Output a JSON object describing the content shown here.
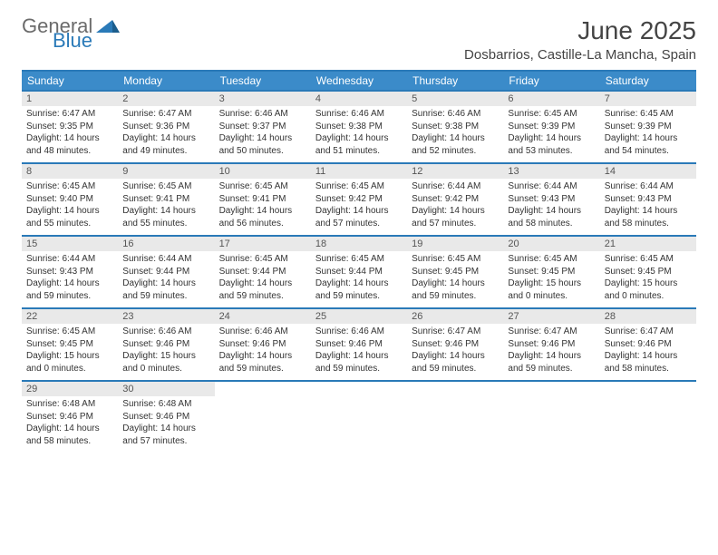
{
  "logo": {
    "line1": "General",
    "line2": "Blue"
  },
  "title": "June 2025",
  "location": "Dosbarrios, Castille-La Mancha, Spain",
  "columns": [
    "Sunday",
    "Monday",
    "Tuesday",
    "Wednesday",
    "Thursday",
    "Friday",
    "Saturday"
  ],
  "header_bg": "#3b8bc9",
  "header_border": "#2a7ab8",
  "daynum_bg": "#e9e9e9",
  "text_color": "#333333",
  "title_fontsize": 28,
  "location_fontsize": 15,
  "dayname_fontsize": 12,
  "daynum_fontsize": 11,
  "info_fontsize": 10,
  "weeks": [
    [
      {
        "n": "1",
        "sr": "6:47 AM",
        "ss": "9:35 PM",
        "dl": "14 hours and 48 minutes."
      },
      {
        "n": "2",
        "sr": "6:47 AM",
        "ss": "9:36 PM",
        "dl": "14 hours and 49 minutes."
      },
      {
        "n": "3",
        "sr": "6:46 AM",
        "ss": "9:37 PM",
        "dl": "14 hours and 50 minutes."
      },
      {
        "n": "4",
        "sr": "6:46 AM",
        "ss": "9:38 PM",
        "dl": "14 hours and 51 minutes."
      },
      {
        "n": "5",
        "sr": "6:46 AM",
        "ss": "9:38 PM",
        "dl": "14 hours and 52 minutes."
      },
      {
        "n": "6",
        "sr": "6:45 AM",
        "ss": "9:39 PM",
        "dl": "14 hours and 53 minutes."
      },
      {
        "n": "7",
        "sr": "6:45 AM",
        "ss": "9:39 PM",
        "dl": "14 hours and 54 minutes."
      }
    ],
    [
      {
        "n": "8",
        "sr": "6:45 AM",
        "ss": "9:40 PM",
        "dl": "14 hours and 55 minutes."
      },
      {
        "n": "9",
        "sr": "6:45 AM",
        "ss": "9:41 PM",
        "dl": "14 hours and 55 minutes."
      },
      {
        "n": "10",
        "sr": "6:45 AM",
        "ss": "9:41 PM",
        "dl": "14 hours and 56 minutes."
      },
      {
        "n": "11",
        "sr": "6:45 AM",
        "ss": "9:42 PM",
        "dl": "14 hours and 57 minutes."
      },
      {
        "n": "12",
        "sr": "6:44 AM",
        "ss": "9:42 PM",
        "dl": "14 hours and 57 minutes."
      },
      {
        "n": "13",
        "sr": "6:44 AM",
        "ss": "9:43 PM",
        "dl": "14 hours and 58 minutes."
      },
      {
        "n": "14",
        "sr": "6:44 AM",
        "ss": "9:43 PM",
        "dl": "14 hours and 58 minutes."
      }
    ],
    [
      {
        "n": "15",
        "sr": "6:44 AM",
        "ss": "9:43 PM",
        "dl": "14 hours and 59 minutes."
      },
      {
        "n": "16",
        "sr": "6:44 AM",
        "ss": "9:44 PM",
        "dl": "14 hours and 59 minutes."
      },
      {
        "n": "17",
        "sr": "6:45 AM",
        "ss": "9:44 PM",
        "dl": "14 hours and 59 minutes."
      },
      {
        "n": "18",
        "sr": "6:45 AM",
        "ss": "9:44 PM",
        "dl": "14 hours and 59 minutes."
      },
      {
        "n": "19",
        "sr": "6:45 AM",
        "ss": "9:45 PM",
        "dl": "14 hours and 59 minutes."
      },
      {
        "n": "20",
        "sr": "6:45 AM",
        "ss": "9:45 PM",
        "dl": "15 hours and 0 minutes."
      },
      {
        "n": "21",
        "sr": "6:45 AM",
        "ss": "9:45 PM",
        "dl": "15 hours and 0 minutes."
      }
    ],
    [
      {
        "n": "22",
        "sr": "6:45 AM",
        "ss": "9:45 PM",
        "dl": "15 hours and 0 minutes."
      },
      {
        "n": "23",
        "sr": "6:46 AM",
        "ss": "9:46 PM",
        "dl": "15 hours and 0 minutes."
      },
      {
        "n": "24",
        "sr": "6:46 AM",
        "ss": "9:46 PM",
        "dl": "14 hours and 59 minutes."
      },
      {
        "n": "25",
        "sr": "6:46 AM",
        "ss": "9:46 PM",
        "dl": "14 hours and 59 minutes."
      },
      {
        "n": "26",
        "sr": "6:47 AM",
        "ss": "9:46 PM",
        "dl": "14 hours and 59 minutes."
      },
      {
        "n": "27",
        "sr": "6:47 AM",
        "ss": "9:46 PM",
        "dl": "14 hours and 59 minutes."
      },
      {
        "n": "28",
        "sr": "6:47 AM",
        "ss": "9:46 PM",
        "dl": "14 hours and 58 minutes."
      }
    ],
    [
      {
        "n": "29",
        "sr": "6:48 AM",
        "ss": "9:46 PM",
        "dl": "14 hours and 58 minutes."
      },
      {
        "n": "30",
        "sr": "6:48 AM",
        "ss": "9:46 PM",
        "dl": "14 hours and 57 minutes."
      },
      null,
      null,
      null,
      null,
      null
    ]
  ],
  "labels": {
    "sunrise": "Sunrise:",
    "sunset": "Sunset:",
    "daylight": "Daylight:"
  }
}
